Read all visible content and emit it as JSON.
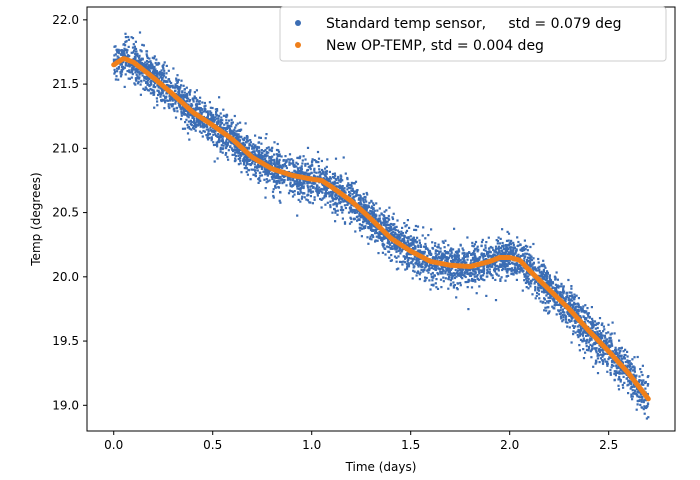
{
  "chart_data": {
    "type": "scatter",
    "xlabel": "Time (days)",
    "ylabel": "Temp (degrees)",
    "xlim": [
      -0.135,
      2.835
    ],
    "ylim": [
      18.8,
      22.1
    ],
    "x_ticks": [
      "0.0",
      "0.5",
      "1.0",
      "1.5",
      "2.0",
      "2.5"
    ],
    "y_ticks": [
      "19.0",
      "19.5",
      "20.0",
      "20.5",
      "21.0",
      "21.5",
      "22.0"
    ],
    "grid": false,
    "legend_position": "top-right",
    "series": [
      {
        "name": "Standard temp sensor,     std = 0.079 deg",
        "color": "#3b6db4",
        "noise_std": 0.079,
        "x": [
          0.0,
          0.05,
          0.1,
          0.2,
          0.3,
          0.4,
          0.5,
          0.6,
          0.7,
          0.8,
          0.9,
          1.0,
          1.05,
          1.1,
          1.2,
          1.3,
          1.4,
          1.5,
          1.6,
          1.7,
          1.8,
          1.9,
          1.95,
          2.0,
          2.05,
          2.1,
          2.2,
          2.3,
          2.4,
          2.5,
          2.6,
          2.7
        ],
        "y": [
          21.65,
          21.7,
          21.67,
          21.55,
          21.42,
          21.28,
          21.18,
          21.07,
          20.93,
          20.84,
          20.79,
          20.76,
          20.75,
          20.7,
          20.59,
          20.45,
          20.3,
          20.2,
          20.12,
          20.09,
          20.08,
          20.12,
          20.15,
          20.15,
          20.13,
          20.05,
          19.9,
          19.75,
          19.58,
          19.42,
          19.25,
          19.05
        ]
      },
      {
        "name": "New OP-TEMP, std = 0.004 deg",
        "color": "#ef7f1a",
        "noise_std": 0.004,
        "x": [
          0.0,
          0.05,
          0.1,
          0.2,
          0.3,
          0.4,
          0.5,
          0.6,
          0.7,
          0.8,
          0.9,
          1.0,
          1.05,
          1.1,
          1.2,
          1.3,
          1.4,
          1.5,
          1.6,
          1.7,
          1.8,
          1.9,
          1.95,
          2.0,
          2.05,
          2.1,
          2.2,
          2.3,
          2.4,
          2.5,
          2.6,
          2.7
        ],
        "y": [
          21.65,
          21.7,
          21.67,
          21.55,
          21.42,
          21.28,
          21.18,
          21.07,
          20.93,
          20.84,
          20.79,
          20.76,
          20.75,
          20.7,
          20.59,
          20.45,
          20.3,
          20.2,
          20.12,
          20.09,
          20.08,
          20.12,
          20.15,
          20.15,
          20.13,
          20.05,
          19.9,
          19.75,
          19.58,
          19.42,
          19.25,
          19.05
        ]
      }
    ]
  }
}
